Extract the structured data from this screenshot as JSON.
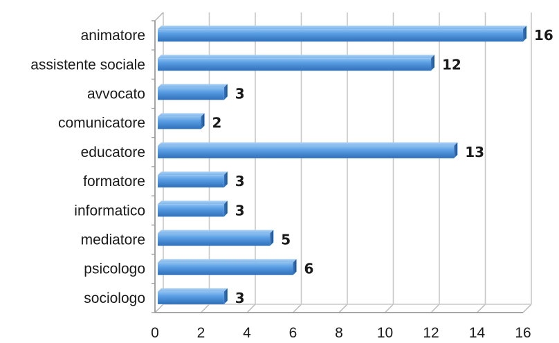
{
  "chart_data": {
    "type": "bar",
    "orientation": "horizontal",
    "style": "3d",
    "categories": [
      "animatore",
      "assistente sociale",
      "avvocato",
      "comunicatore",
      "educatore",
      "formatore",
      "informatico",
      "mediatore",
      "psicologo",
      "sociologo"
    ],
    "values": [
      16,
      12,
      3,
      2,
      13,
      3,
      3,
      5,
      6,
      3
    ],
    "data_labels": [
      "16",
      "12",
      "3",
      "2",
      "13",
      "3",
      "3",
      "5",
      "6",
      "3"
    ],
    "x_ticks": [
      "0",
      "2",
      "4",
      "6",
      "8",
      "10",
      "12",
      "14",
      "16"
    ],
    "xlim": [
      0,
      16
    ],
    "grid": true,
    "legend": "none",
    "bar_color": "#4a8fd6",
    "title": "",
    "xlabel": "",
    "ylabel": ""
  }
}
